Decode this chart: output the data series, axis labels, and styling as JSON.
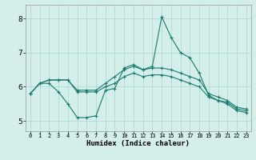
{
  "xlabel": "Humidex (Indice chaleur)",
  "ylabel": "",
  "background_color": "#d4efea",
  "grid_color": "#aedad3",
  "line_color": "#1a7a6e",
  "xlim": [
    -0.5,
    23.5
  ],
  "ylim": [
    4.7,
    8.4
  ],
  "xtick_labels": [
    "0",
    "1",
    "2",
    "3",
    "4",
    "5",
    "6",
    "7",
    "8",
    "9",
    "10",
    "11",
    "12",
    "13",
    "14",
    "15",
    "16",
    "17",
    "18",
    "19",
    "20",
    "21",
    "22",
    "23"
  ],
  "yticks": [
    5,
    6,
    7,
    8
  ],
  "series": [
    [
      5.8,
      6.1,
      6.2,
      6.2,
      6.2,
      5.9,
      5.9,
      5.9,
      6.1,
      6.3,
      6.5,
      6.6,
      6.5,
      6.55,
      6.55,
      6.5,
      6.4,
      6.3,
      6.2,
      5.8,
      5.7,
      5.6,
      5.4,
      5.35
    ],
    [
      5.8,
      6.1,
      6.1,
      5.85,
      5.5,
      5.1,
      5.1,
      5.15,
      5.9,
      5.95,
      6.55,
      6.65,
      6.5,
      6.6,
      8.05,
      7.45,
      7.0,
      6.85,
      6.4,
      5.75,
      5.6,
      5.55,
      5.35,
      5.3
    ],
    [
      5.8,
      6.1,
      6.2,
      6.2,
      6.2,
      5.85,
      5.85,
      5.85,
      6.0,
      6.1,
      6.3,
      6.4,
      6.3,
      6.35,
      6.35,
      6.3,
      6.2,
      6.1,
      6.0,
      5.7,
      5.6,
      5.5,
      5.3,
      5.25
    ]
  ],
  "linestyles": [
    "-",
    "-",
    "-"
  ],
  "tick_fontsize": 5,
  "xlabel_fontsize": 6.5
}
